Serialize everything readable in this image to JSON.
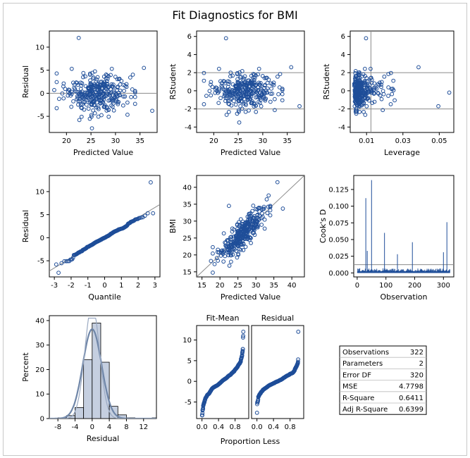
{
  "title": "Fit Diagnostics for BMI",
  "colors": {
    "marker": "#1f4e99",
    "reference": "#8a8a8a",
    "bar_fill": "#c5cfe0",
    "curve": "#6f86a8"
  },
  "chart_data": [
    {
      "type": "scatter",
      "id": "resid_vs_pred",
      "xlabel": "Predicted Value",
      "ylabel": "Residual",
      "xlim": [
        16.5,
        38.5
      ],
      "ylim": [
        -8.5,
        13.5
      ],
      "xticks": [
        20,
        25,
        30,
        35
      ],
      "yticks": [
        -5,
        0,
        5,
        10
      ],
      "refline": {
        "y": 0
      },
      "highlighted": [
        {
          "x": 22.5,
          "y": 12
        },
        {
          "x": 25.2,
          "y": -7.6
        },
        {
          "x": 35.8,
          "y": 5.5
        },
        {
          "x": 37.5,
          "y": -3.8
        },
        {
          "x": 17.5,
          "y": 0.7
        }
      ]
    },
    {
      "type": "scatter",
      "id": "rstudent_vs_pred",
      "xlabel": "Predicted Value",
      "ylabel": "RStudent",
      "xlim": [
        16.5,
        38.5
      ],
      "ylim": [
        -4.6,
        6.6
      ],
      "xticks": [
        20,
        25,
        30,
        35
      ],
      "yticks": [
        -4,
        -2,
        0,
        2,
        4,
        6
      ],
      "reflines": {
        "y": [
          -2,
          2
        ]
      },
      "highlighted": [
        {
          "x": 22.5,
          "y": 5.8
        },
        {
          "x": 25.2,
          "y": -3.5
        },
        {
          "x": 35.8,
          "y": 2.6
        },
        {
          "x": 37.5,
          "y": -1.7
        }
      ]
    },
    {
      "type": "scatter",
      "id": "rstudent_vs_leverage",
      "xlabel": "Leverage",
      "ylabel": "RStudent",
      "xlim": [
        0.001,
        0.058
      ],
      "ylim": [
        -4.6,
        6.6
      ],
      "xticks": [
        0.01,
        0.03,
        0.05
      ],
      "xticklabels": [
        "0.01",
        "0.03",
        "0.05"
      ],
      "yticks": [
        -4,
        -2,
        0,
        2,
        4,
        6
      ],
      "reflines": {
        "y": [
          -2,
          2
        ],
        "x": [
          0.0124
        ]
      },
      "highlighted": [
        {
          "x": 0.0097,
          "y": 5.8
        },
        {
          "x": 0.0386,
          "y": 2.6
        },
        {
          "x": 0.0495,
          "y": -1.7
        },
        {
          "x": 0.0555,
          "y": -0.2
        }
      ]
    },
    {
      "type": "scatter",
      "id": "qq_plot",
      "xlabel": "Quantile",
      "ylabel": "Residual",
      "xlim": [
        -3.3,
        3.3
      ],
      "ylim": [
        -8.5,
        13.5
      ],
      "xticks": [
        -3,
        -2,
        -1,
        0,
        1,
        2,
        3
      ],
      "yticks": [
        -5,
        0,
        5,
        10
      ],
      "refline": {
        "intercept": 0,
        "slope": 2.186
      },
      "highlighted": [
        {
          "x": 2.75,
          "y": 12
        },
        {
          "x": -2.75,
          "y": -7.6
        }
      ]
    },
    {
      "type": "scatter",
      "id": "observed_vs_predicted",
      "xlabel": "Predicted Value",
      "ylabel": "BMI",
      "xlim": [
        13.5,
        43.5
      ],
      "ylim": [
        13.5,
        43.5
      ],
      "xticks": [
        15,
        20,
        25,
        30,
        35,
        40
      ],
      "yticks": [
        15,
        20,
        25,
        30,
        35,
        40
      ],
      "refline": {
        "intercept": 0,
        "slope": 1
      },
      "highlighted": [
        {
          "x": 36,
          "y": 41.5
        },
        {
          "x": 22.5,
          "y": 34.5
        },
        {
          "x": 37.5,
          "y": 33.7
        },
        {
          "x": 17.5,
          "y": 18.2
        }
      ]
    },
    {
      "type": "needle",
      "id": "cooks_d",
      "xlabel": "Observation",
      "ylabel": "Cook's D",
      "xlim": [
        -12,
        336
      ],
      "ylim": [
        -0.006,
        0.146
      ],
      "xticks": [
        0,
        100,
        200,
        300
      ],
      "yticks": [
        0,
        0.025,
        0.05,
        0.075,
        0.1,
        0.125
      ],
      "yticklabels": [
        "0.000",
        "0.025",
        "0.050",
        "0.075",
        "0.100",
        "0.125"
      ],
      "refline": {
        "y": 0.0124
      },
      "n": 322,
      "peaks": [
        {
          "x": 30,
          "y": 0.112
        },
        {
          "x": 50,
          "y": 0.139
        },
        {
          "x": 95,
          "y": 0.06
        },
        {
          "x": 192,
          "y": 0.046
        },
        {
          "x": 312,
          "y": 0.076
        },
        {
          "x": 35,
          "y": 0.033
        },
        {
          "x": 140,
          "y": 0.028
        },
        {
          "x": 300,
          "y": 0.031
        }
      ]
    },
    {
      "type": "histogram",
      "id": "residual_histogram",
      "xlabel": "Residual",
      "ylabel": "Percent",
      "xlim": [
        -10,
        15
      ],
      "ylim": [
        0,
        42
      ],
      "xticks": [
        -8,
        -4,
        0,
        4,
        8,
        12
      ],
      "yticks": [
        0,
        10,
        20,
        30,
        40
      ],
      "bin_start": -8,
      "bin_width": 2,
      "values": [
        0.3,
        1.2,
        4.5,
        24,
        39,
        23,
        5,
        1.5,
        0.3,
        0,
        0,
        0.3
      ],
      "overlays": [
        "normal",
        "kernel"
      ]
    },
    {
      "type": "rf_spread",
      "id": "residual_fit_spread",
      "xlabel": "Proportion Less",
      "panels": [
        "Fit-Mean",
        "Residual"
      ],
      "xticks": [
        0,
        0.4,
        0.8
      ],
      "xticklabels": [
        "0.0",
        "0.4",
        "0.8"
      ],
      "ylim": [
        -9,
        13.5
      ],
      "yticks": [
        -5,
        0,
        5,
        10
      ]
    }
  ],
  "stats": [
    {
      "label": "Observations",
      "value": "322"
    },
    {
      "label": "Parameters",
      "value": "2"
    },
    {
      "label": "Error DF",
      "value": "320"
    },
    {
      "label": "MSE",
      "value": "4.7798"
    },
    {
      "label": "R-Square",
      "value": "0.6411"
    },
    {
      "label": "Adj R-Square",
      "value": "0.6399"
    }
  ]
}
